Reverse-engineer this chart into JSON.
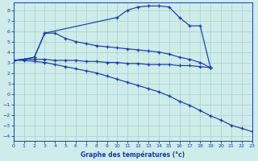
{
  "xlabel": "Graphe des températures (°c)",
  "xlim": [
    0,
    23
  ],
  "ylim": [
    -4.5,
    8.7
  ],
  "xticks": [
    0,
    1,
    2,
    3,
    4,
    5,
    6,
    7,
    8,
    9,
    10,
    11,
    12,
    13,
    14,
    15,
    16,
    17,
    18,
    19,
    20,
    21,
    22,
    23
  ],
  "yticks": [
    -4,
    -3,
    -2,
    -1,
    0,
    1,
    2,
    3,
    4,
    5,
    6,
    7,
    8
  ],
  "bg_color": "#ceecea",
  "line_color": "#1a3baa",
  "grid_color": "#aacfcc",
  "lines": [
    {
      "x": [
        0,
        1,
        2,
        3,
        4,
        5,
        6,
        7,
        8,
        9,
        10,
        11,
        12,
        13,
        14,
        15,
        16,
        17,
        18,
        19
      ],
      "y": [
        3.2,
        3.3,
        3.3,
        3.3,
        3.2,
        3.2,
        3.2,
        3.1,
        3.1,
        3.0,
        3.0,
        2.9,
        2.9,
        2.8,
        2.8,
        2.8,
        2.7,
        2.7,
        2.6,
        2.5
      ]
    },
    {
      "x": [
        0,
        1,
        2,
        3,
        4,
        5,
        6,
        7,
        8,
        9,
        10,
        11,
        12,
        13,
        14,
        15,
        16,
        17,
        18,
        19
      ],
      "y": [
        3.2,
        3.3,
        3.5,
        5.8,
        5.8,
        5.3,
        5.0,
        4.8,
        4.6,
        4.5,
        4.4,
        4.3,
        4.2,
        4.1,
        4.0,
        3.8,
        3.5,
        3.3,
        3.0,
        2.5
      ]
    },
    {
      "x": [
        0,
        1,
        2,
        3,
        10,
        11,
        12,
        13,
        14,
        15,
        16,
        17,
        18,
        19
      ],
      "y": [
        3.2,
        3.3,
        3.5,
        5.8,
        7.3,
        8.0,
        8.3,
        8.4,
        8.4,
        8.3,
        7.3,
        6.5,
        6.5,
        2.5
      ]
    },
    {
      "x": [
        0,
        1,
        2,
        3,
        4,
        5,
        6,
        7,
        8,
        9,
        10,
        11,
        12,
        13,
        14,
        15,
        16,
        17,
        18,
        19,
        20,
        21,
        22,
        23
      ],
      "y": [
        3.2,
        3.2,
        3.1,
        3.0,
        2.8,
        2.6,
        2.4,
        2.2,
        2.0,
        1.7,
        1.4,
        1.1,
        0.8,
        0.5,
        0.2,
        -0.2,
        -0.7,
        -1.1,
        -1.6,
        -2.1,
        -2.5,
        -3.0,
        -3.3,
        -3.6
      ]
    }
  ]
}
